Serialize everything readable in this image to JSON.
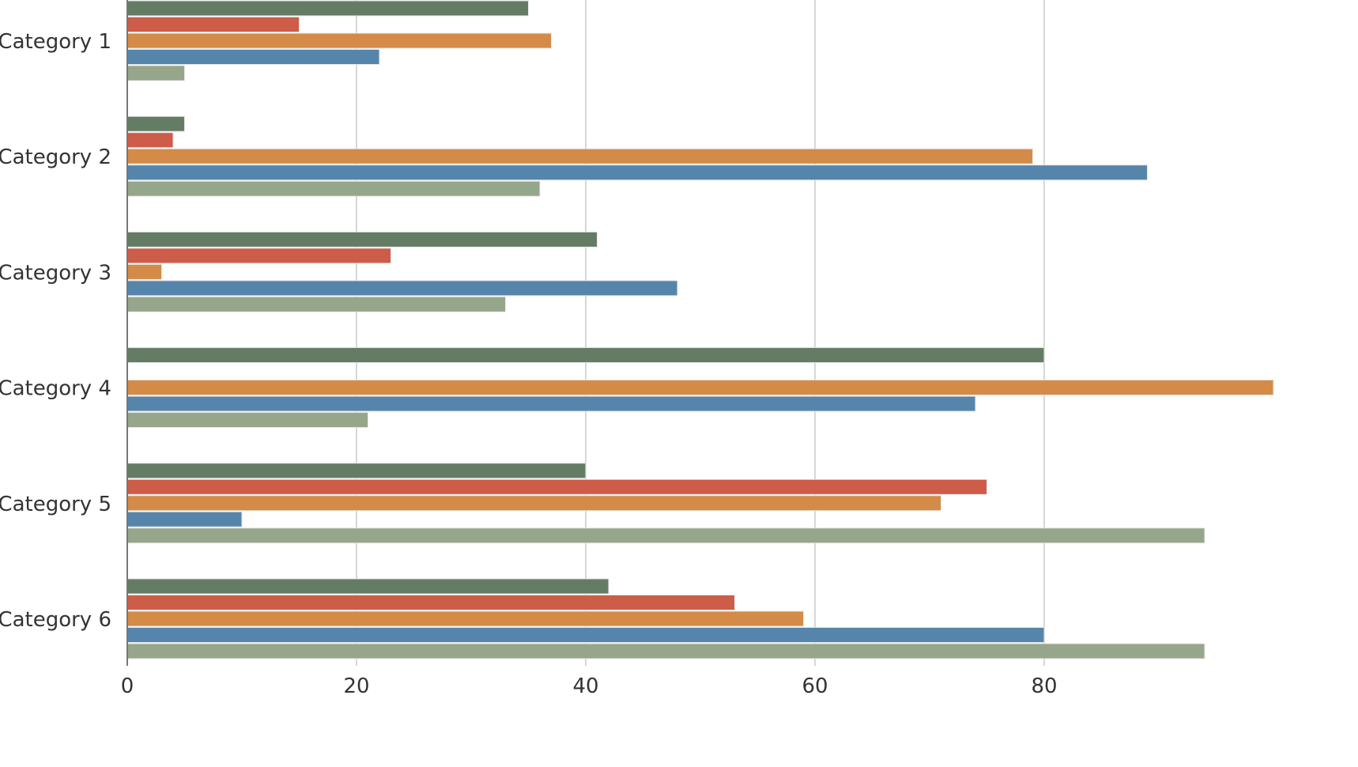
{
  "chart_data": {
    "type": "bar",
    "orientation": "horizontal",
    "categories": [
      "Category 1",
      "Category 2",
      "Category 3",
      "Category 4",
      "Category 5",
      "Category 6"
    ],
    "series": [
      {
        "color": "#647c63",
        "values": [
          35,
          5,
          41,
          80,
          40,
          42
        ]
      },
      {
        "color": "#cd5c48",
        "values": [
          15,
          4,
          23,
          0,
          75,
          53
        ]
      },
      {
        "color": "#d38b47",
        "values": [
          37,
          79,
          3,
          100,
          71,
          59
        ]
      },
      {
        "color": "#5685ab",
        "values": [
          22,
          89,
          48,
          74,
          10,
          80
        ]
      },
      {
        "color": "#96a68a",
        "values": [
          5,
          36,
          33,
          21,
          94,
          94
        ]
      }
    ],
    "x_ticks": [
      "0",
      "20",
      "40",
      "60",
      "80"
    ],
    "x_tick_values": [
      0,
      20,
      40,
      60,
      80
    ],
    "title": "",
    "xlabel": "",
    "ylabel": "",
    "grid": "vertical",
    "legend": "none"
  }
}
